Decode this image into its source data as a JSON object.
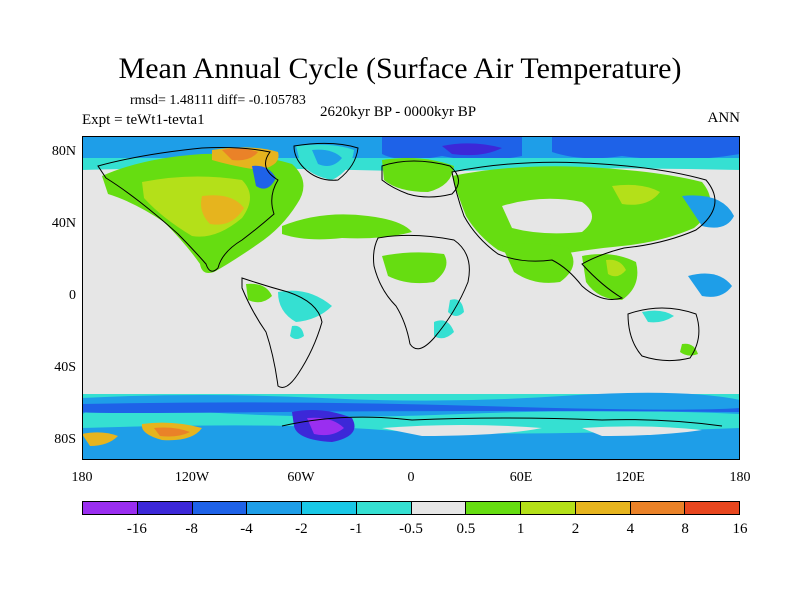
{
  "title": "Mean Annual Cycle (Surface Air Temperature)",
  "stats": "rmsd= 1.48111  diff= -0.105783",
  "experiment": "Expt = teWt1-tevta1",
  "period": "2620kyr BP - 0000kyr BP",
  "season": "ANN",
  "map": {
    "y_ticks": [
      "80N",
      "40N",
      "0",
      "40S",
      "80S"
    ],
    "x_ticks": [
      "180",
      "120W",
      "60W",
      "0",
      "60E",
      "120E",
      "180"
    ]
  },
  "colorbar": {
    "colors": [
      "#9a2ef0",
      "#3c28d8",
      "#1e62e8",
      "#1e9ee8",
      "#19c8e6",
      "#35e0d2",
      "#e6e6e6",
      "#66dd11",
      "#b4e019",
      "#e6b41e",
      "#ea8228",
      "#e8461e"
    ],
    "labels": [
      "-16",
      "-8",
      "-4",
      "-2",
      "-1",
      "-0.5",
      "0.5",
      "1",
      "2",
      "4",
      "8",
      "16"
    ]
  }
}
